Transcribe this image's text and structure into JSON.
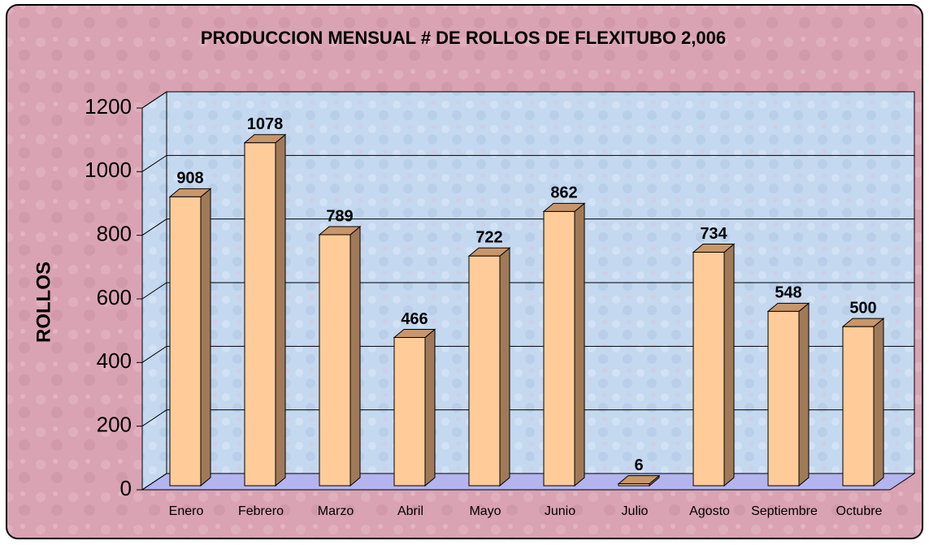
{
  "chart_data": {
    "type": "bar3d",
    "title": "PRODUCCION MENSUAL # DE ROLLOS DE FLEXITUBO 2,006",
    "y_label": "ROLLOS",
    "categories": [
      "Enero",
      "Febrero",
      "Marzo",
      "Abril",
      "Mayo",
      "Junio",
      "Julio",
      "Agosto",
      "Septiembre",
      "Octubre"
    ],
    "values": [
      908,
      1078,
      789,
      466,
      722,
      862,
      6,
      734,
      548,
      500
    ],
    "color": "#ffcc99",
    "ylim": [
      0,
      1200
    ],
    "yticks": [
      0,
      200,
      400,
      600,
      800,
      1000,
      1200
    ],
    "grid": true
  }
}
